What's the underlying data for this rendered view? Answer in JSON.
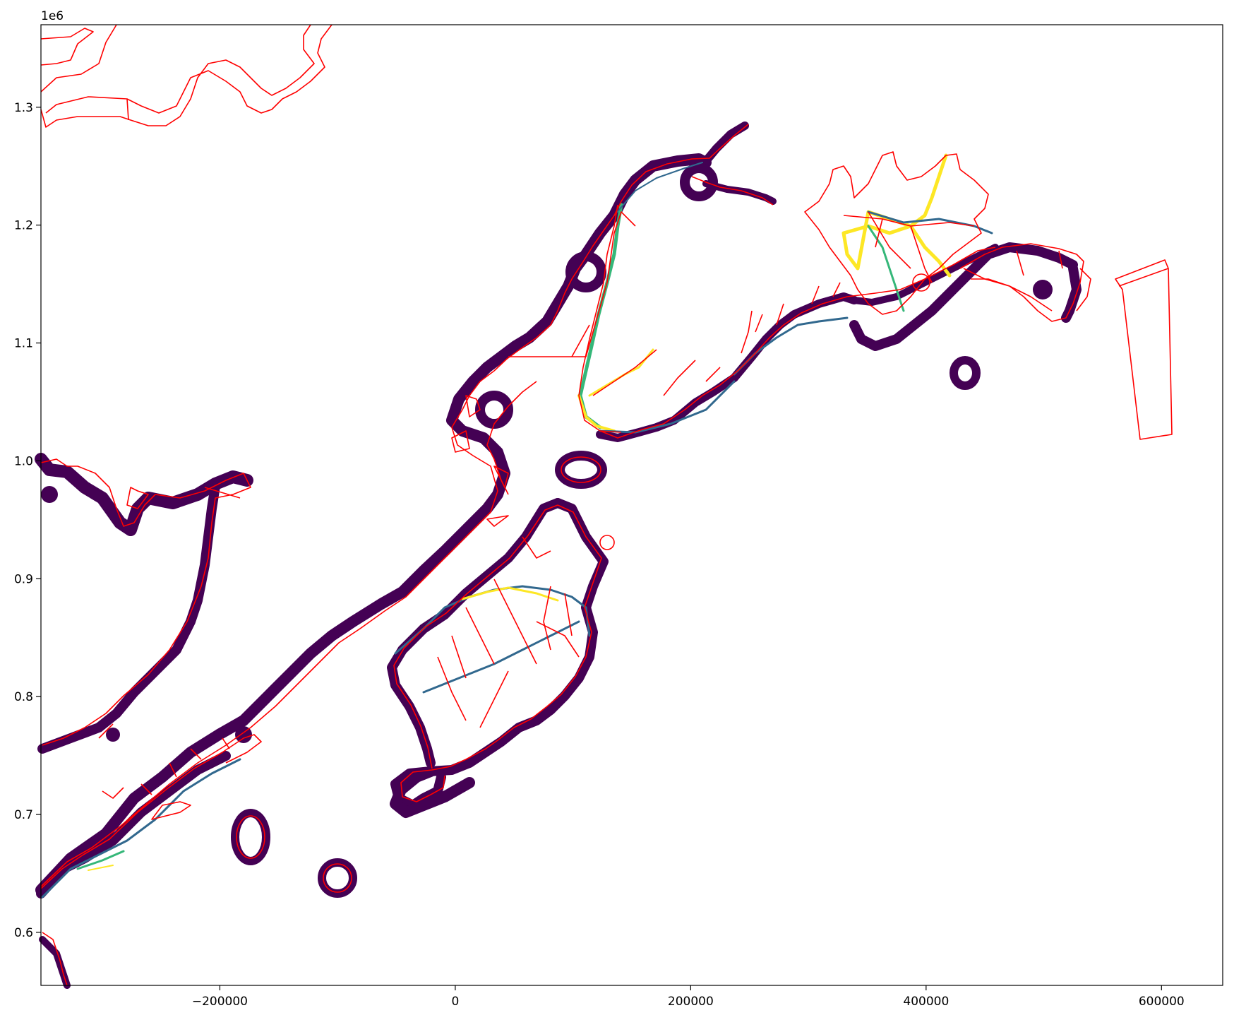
{
  "figure": {
    "offset_label": "1e6"
  },
  "axes": {
    "x_ticks": [
      {
        "value": -200000,
        "label": "−200000"
      },
      {
        "value": 0,
        "label": "0"
      },
      {
        "value": 200000,
        "label": "200000"
      },
      {
        "value": 400000,
        "label": "400000"
      },
      {
        "value": 600000,
        "label": "600000"
      }
    ],
    "y_ticks": [
      {
        "value": 0.6,
        "label": "0.6"
      },
      {
        "value": 0.7,
        "label": "0.7"
      },
      {
        "value": 0.8,
        "label": "0.8"
      },
      {
        "value": 0.9,
        "label": "0.9"
      },
      {
        "value": 1.0,
        "label": "1.0"
      },
      {
        "value": 1.1,
        "label": "1.1"
      },
      {
        "value": 1.2,
        "label": "1.2"
      },
      {
        "value": 1.3,
        "label": "1.3"
      }
    ],
    "x_range": [
      -352000,
      652000
    ],
    "y_range": [
      0.555,
      1.37
    ]
  },
  "colors": {
    "outline": "#ff0000",
    "buffer": "#440154",
    "route_mid": "#31688e",
    "route_high": "#35b779",
    "route_peak": "#fde725"
  }
}
